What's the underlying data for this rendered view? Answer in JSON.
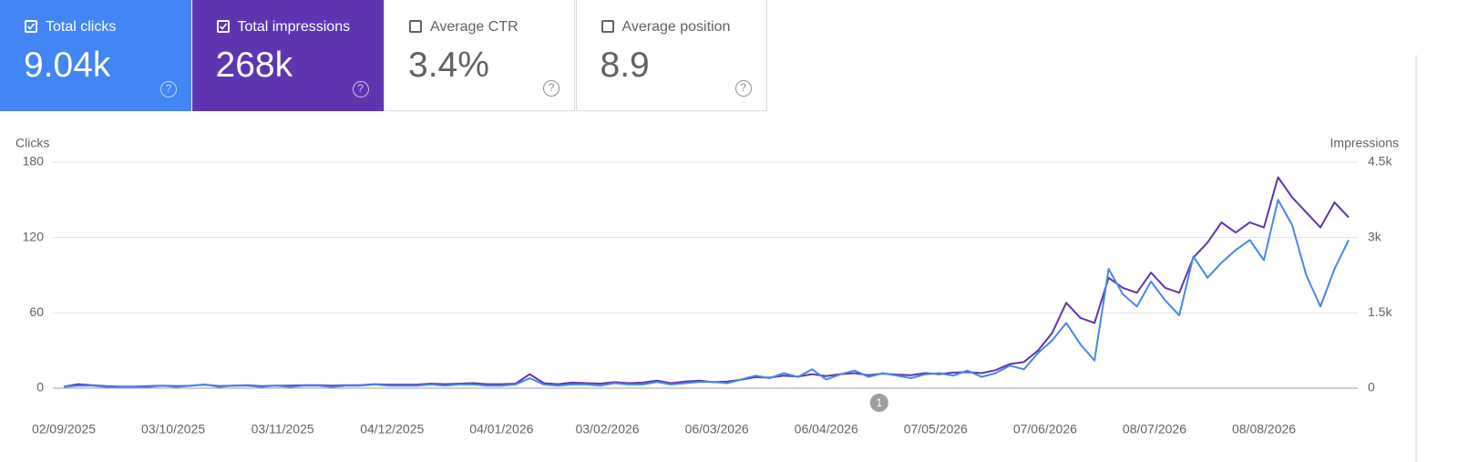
{
  "metrics": [
    {
      "label": "Total clicks",
      "value": "9.04k",
      "checked": true,
      "color": "#4285f4"
    },
    {
      "label": "Total impressions",
      "value": "268k",
      "checked": true,
      "color": "#5e35b1"
    },
    {
      "label": "Average CTR",
      "value": "3.4%",
      "checked": false,
      "color": "#ffffff"
    },
    {
      "label": "Average position",
      "value": "8.9",
      "checked": false,
      "color": "#ffffff"
    }
  ],
  "chart_data": {
    "type": "line",
    "y_label": "Clicks",
    "y2_label": "Impressions",
    "x": [
      0,
      4,
      8,
      12,
      16,
      20,
      24,
      28,
      32,
      36,
      40,
      44,
      48,
      52,
      56,
      60,
      64,
      68,
      72,
      76,
      80,
      84,
      88,
      92,
      96,
      100,
      104,
      108,
      112,
      116,
      120,
      124,
      128,
      132,
      136,
      140,
      144,
      148,
      152,
      156,
      160,
      164,
      168,
      172,
      176,
      180,
      184,
      188,
      192,
      196,
      200,
      204,
      208,
      212,
      216,
      220,
      224,
      228,
      232,
      236,
      240,
      244,
      248,
      252,
      256,
      260,
      264,
      268,
      272,
      276,
      280,
      284,
      288,
      292,
      296,
      300,
      304,
      308,
      312,
      316,
      320,
      324,
      328,
      332,
      336,
      340,
      344,
      348,
      352,
      356,
      360,
      364
    ],
    "xlim": [
      0,
      364
    ],
    "xticks": [
      {
        "value": 0,
        "label": "02/09/2025"
      },
      {
        "value": 31,
        "label": "03/10/2025"
      },
      {
        "value": 62,
        "label": "03/11/2025"
      },
      {
        "value": 93,
        "label": "04/12/2025"
      },
      {
        "value": 124,
        "label": "04/01/2026"
      },
      {
        "value": 154,
        "label": "03/02/2026"
      },
      {
        "value": 185,
        "label": "06/03/2026"
      },
      {
        "value": 216,
        "label": "06/04/2026"
      },
      {
        "value": 247,
        "label": "07/05/2026"
      },
      {
        "value": 278,
        "label": "07/06/2026"
      },
      {
        "value": 309,
        "label": "08/07/2026"
      },
      {
        "value": 340,
        "label": "08/08/2026"
      }
    ],
    "ylim": [
      0,
      180
    ],
    "yticks": [
      0,
      60,
      120,
      180
    ],
    "y2lim": [
      0,
      4500
    ],
    "y2ticks": [
      0,
      {
        "value": 1500,
        "label": "1.5k"
      },
      {
        "value": 3000,
        "label": "3k"
      },
      {
        "value": 4500,
        "label": "4.5k"
      }
    ],
    "grid": true,
    "series": [
      {
        "name": "Total impressions",
        "color": "#5e35b1",
        "axis": "y2",
        "values": [
          30,
          80,
          60,
          40,
          30,
          30,
          40,
          50,
          40,
          50,
          70,
          40,
          50,
          60,
          40,
          50,
          50,
          60,
          60,
          50,
          60,
          60,
          80,
          70,
          70,
          70,
          90,
          80,
          90,
          100,
          80,
          80,
          90,
          280,
          100,
          80,
          110,
          100,
          90,
          120,
          100,
          110,
          150,
          100,
          130,
          150,
          120,
          130,
          170,
          220,
          210,
          250,
          230,
          280,
          240,
          280,
          300,
          260,
          290,
          270,
          260,
          300,
          280,
          310,
          320,
          300,
          360,
          480,
          520,
          750,
          1100,
          1700,
          1400,
          1300,
          2200,
          2000,
          1900,
          2300,
          2000,
          1900,
          2600,
          2900,
          3300,
          3100,
          3300,
          3200,
          4200,
          3800,
          3500,
          3200,
          3700,
          3400
        ]
      },
      {
        "name": "Total clicks",
        "color": "#4a86e8",
        "values": [
          1,
          2,
          2,
          1,
          1,
          1,
          1,
          2,
          1,
          2,
          3,
          1,
          2,
          2,
          1,
          2,
          1,
          2,
          2,
          1,
          2,
          2,
          3,
          2,
          2,
          2,
          3,
          2,
          3,
          3,
          2,
          2,
          3,
          8,
          3,
          2,
          3,
          3,
          2,
          4,
          3,
          3,
          5,
          3,
          4,
          5,
          5,
          4,
          7,
          10,
          8,
          12,
          9,
          15,
          7,
          11,
          14,
          9,
          12,
          10,
          8,
          11,
          12,
          10,
          14,
          9,
          12,
          18,
          15,
          28,
          38,
          52,
          35,
          22,
          95,
          75,
          65,
          85,
          70,
          58,
          105,
          88,
          100,
          110,
          118,
          102,
          150,
          130,
          90,
          65,
          95,
          118
        ]
      }
    ],
    "annotations": [
      {
        "x": 231,
        "label": "1"
      }
    ]
  }
}
